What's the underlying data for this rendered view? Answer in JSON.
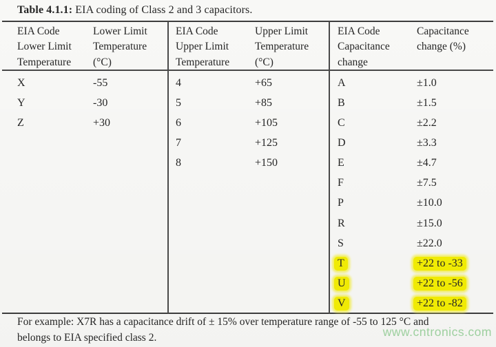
{
  "caption": {
    "label": "Table 4.1.1:",
    "text": " EIA coding of Class 2 and 3 capacitors."
  },
  "table": {
    "sections": [
      {
        "name": "lower-limit-temperature",
        "code_header": [
          "EIA Code",
          "Lower Limit",
          "Temperature"
        ],
        "value_header": [
          "Lower Limit",
          "Temperature",
          "(°C)"
        ],
        "rows": [
          {
            "code": "X",
            "value": "-55",
            "highlight": false
          },
          {
            "code": "Y",
            "value": "-30",
            "highlight": false
          },
          {
            "code": "Z",
            "value": "+30",
            "highlight": false
          }
        ]
      },
      {
        "name": "upper-limit-temperature",
        "code_header": [
          "EIA Code",
          "Upper Limit",
          "Temperature"
        ],
        "value_header": [
          "Upper Limit",
          "Temperature",
          "(°C)"
        ],
        "rows": [
          {
            "code": "4",
            "value": "+65",
            "highlight": false
          },
          {
            "code": "5",
            "value": "+85",
            "highlight": false
          },
          {
            "code": "6",
            "value": "+105",
            "highlight": false
          },
          {
            "code": "7",
            "value": "+125",
            "highlight": false
          },
          {
            "code": "8",
            "value": "+150",
            "highlight": false
          }
        ]
      },
      {
        "name": "capacitance-change",
        "code_header": [
          "EIA Code",
          "Capacitance",
          "change"
        ],
        "value_header": [
          "Capacitance",
          "change (%)",
          ""
        ],
        "rows": [
          {
            "code": "A",
            "value": "±1.0",
            "highlight": false
          },
          {
            "code": "B",
            "value": "±1.5",
            "highlight": false
          },
          {
            "code": "C",
            "value": "±2.2",
            "highlight": false
          },
          {
            "code": "D",
            "value": "±3.3",
            "highlight": false
          },
          {
            "code": "E",
            "value": "±4.7",
            "highlight": false
          },
          {
            "code": "F",
            "value": "±7.5",
            "highlight": false
          },
          {
            "code": "P",
            "value": "±10.0",
            "highlight": false
          },
          {
            "code": "R",
            "value": "±15.0",
            "highlight": false
          },
          {
            "code": "S",
            "value": "±22.0",
            "highlight": false
          },
          {
            "code": "T",
            "value": "+22 to -33",
            "highlight": true
          },
          {
            "code": "U",
            "value": "+22 to -56",
            "highlight": true
          },
          {
            "code": "V",
            "value": "+22 to -82",
            "highlight": true
          }
        ]
      }
    ]
  },
  "footnote": {
    "line1": "For example: X7R has a capacitance drift of ± 15% over temperature range of -55 to 125 °C and",
    "line2": "belongs to EIA specified class 2."
  },
  "watermark": "www.cntronics.com",
  "colors": {
    "highlight": "#f7f104",
    "watermark_green": "#a2d6a4",
    "text": "#262626",
    "rule": "#3e3e3e"
  }
}
